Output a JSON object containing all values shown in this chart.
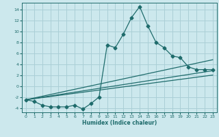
{
  "title": "",
  "xlabel": "Humidex (Indice chaleur)",
  "bg_color": "#cce8ed",
  "grid_color": "#aacfd6",
  "line_color": "#1e6b6b",
  "xlim": [
    -0.5,
    23.5
  ],
  "ylim": [
    -4.8,
    15.2
  ],
  "xticks": [
    0,
    1,
    2,
    3,
    4,
    5,
    6,
    7,
    8,
    9,
    10,
    11,
    12,
    13,
    14,
    15,
    16,
    17,
    18,
    19,
    20,
    21,
    22,
    23
  ],
  "yticks": [
    -4,
    -2,
    0,
    2,
    4,
    6,
    8,
    10,
    12,
    14
  ],
  "line1_x": [
    0,
    1,
    2,
    3,
    4,
    5,
    6,
    7,
    8,
    9,
    10,
    11,
    12,
    13,
    14,
    15,
    16,
    17,
    18,
    19,
    20,
    21,
    22,
    23
  ],
  "line1_y": [
    -2.5,
    -2.8,
    -3.5,
    -3.8,
    -3.8,
    -3.8,
    -3.5,
    -4.2,
    -3.2,
    -2.0,
    7.5,
    7.0,
    9.5,
    12.5,
    14.5,
    11.0,
    8.0,
    7.0,
    5.5,
    5.2,
    3.5,
    3.0,
    3.0,
    3.0
  ],
  "line2_x": [
    0,
    23
  ],
  "line2_y": [
    -2.5,
    2.8
  ],
  "line3_x": [
    0,
    23
  ],
  "line3_y": [
    -2.5,
    2.0
  ],
  "line4_x": [
    0,
    23
  ],
  "line4_y": [
    -2.5,
    4.8
  ]
}
